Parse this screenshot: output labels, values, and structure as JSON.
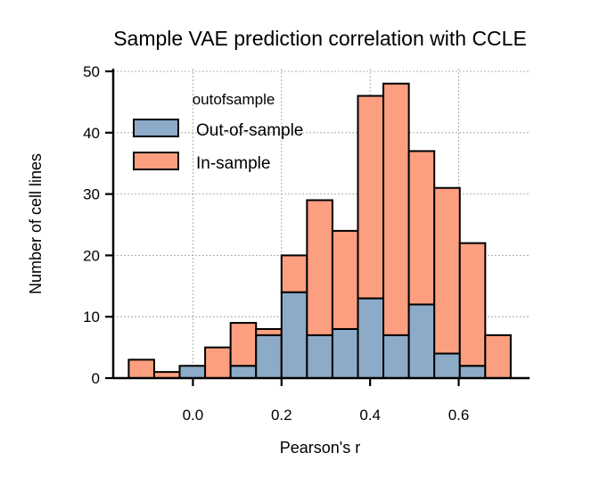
{
  "chart_data": {
    "type": "bar",
    "stacked": true,
    "title": "Sample VAE prediction correlation with CCLE",
    "xlabel": "Pearson's r",
    "ylabel": "Number of cell lines",
    "xlim": [
      -0.18,
      0.76
    ],
    "ylim": [
      0,
      50
    ],
    "xticks": [
      "0.0",
      "0.2",
      "0.4",
      "0.6"
    ],
    "yticks": [
      "0",
      "10",
      "20",
      "30",
      "40",
      "50"
    ],
    "grid": true,
    "legend": {
      "title": "outofsample",
      "placement": "upper-left",
      "entries": [
        "Out-of-sample",
        "In-sample"
      ]
    },
    "bin_width": 0.0575,
    "bin_starts": [
      -0.145,
      -0.0875,
      -0.03,
      0.0275,
      0.085,
      0.1425,
      0.2,
      0.2575,
      0.315,
      0.3725,
      0.43,
      0.4875,
      0.545,
      0.6025,
      0.66
    ],
    "series": [
      {
        "name": "Out-of-sample",
        "color": "#8cabc8",
        "values": [
          0,
          0,
          2,
          0,
          2,
          7,
          14,
          7,
          8,
          13,
          7,
          12,
          4,
          2,
          0
        ]
      },
      {
        "name": "In-sample",
        "color": "#fc9f80",
        "values": [
          3,
          1,
          0,
          5,
          7,
          1,
          6,
          22,
          16,
          33,
          41,
          25,
          27,
          20,
          7
        ]
      }
    ]
  }
}
